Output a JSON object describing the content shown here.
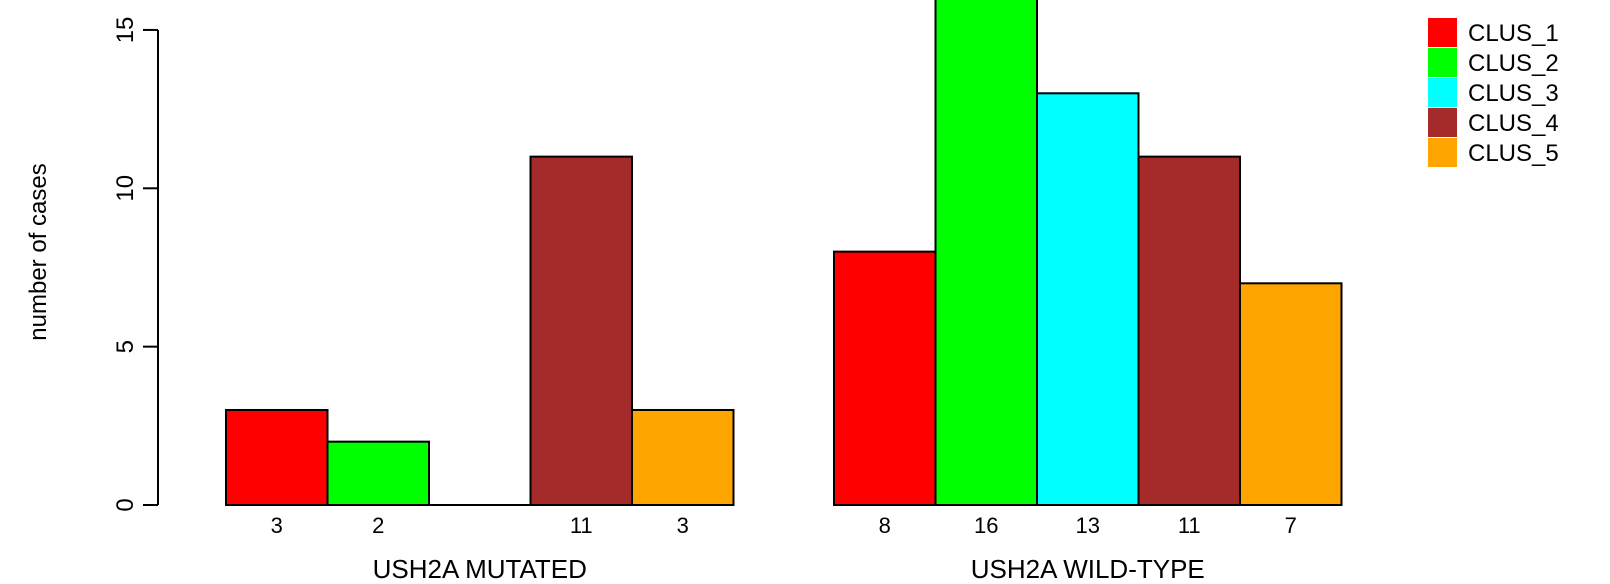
{
  "chart_data": {
    "type": "bar",
    "ylabel": "number of cases",
    "ylim": [
      0,
      15
    ],
    "yticks": [
      0,
      5,
      10,
      15
    ],
    "groups": [
      {
        "label": "USH2A MUTATED",
        "values": [
          3,
          2,
          0,
          11,
          3
        ],
        "value_labels": [
          "3",
          "2",
          "",
          "11",
          "3"
        ]
      },
      {
        "label": "USH2A WILD-TYPE",
        "values": [
          8,
          16,
          13,
          11,
          7
        ],
        "value_labels": [
          "8",
          "16",
          "13",
          "11",
          "7"
        ]
      }
    ],
    "series": [
      {
        "name": "CLUS_1",
        "color": "#ff0000"
      },
      {
        "name": "CLUS_2",
        "color": "#00ff00"
      },
      {
        "name": "CLUS_3",
        "color": "#00ffff"
      },
      {
        "name": "CLUS_4",
        "color": "#a52a2a"
      },
      {
        "name": "CLUS_5",
        "color": "#ffa500"
      }
    ],
    "legend_position": "top-right"
  }
}
